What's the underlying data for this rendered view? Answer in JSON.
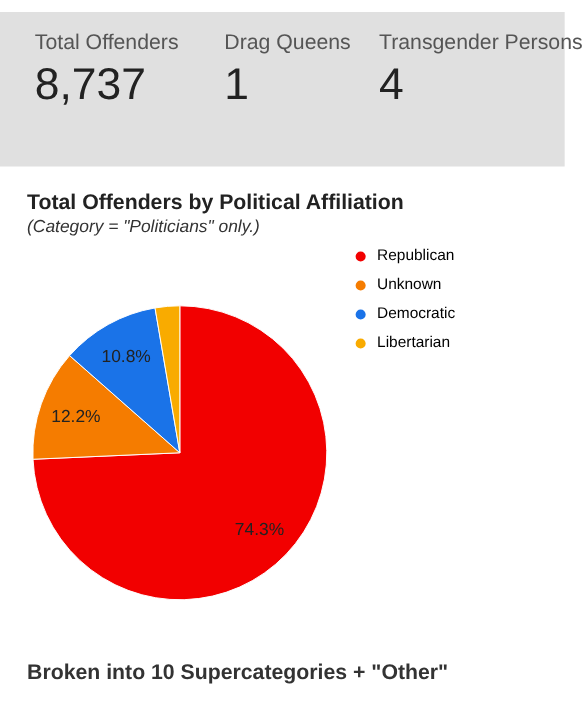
{
  "chart_data": [
    {
      "type": "other",
      "categories": [
        "Total Offenders",
        "Drag Queens",
        "Transgender Persons"
      ],
      "values": [
        8737,
        1,
        4
      ],
      "value_labels": [
        "8,737",
        "1",
        "4"
      ],
      "data_labels": true
    },
    {
      "type": "pie",
      "title": "Total Offenders by Political Affiliation",
      "subtitle": "(Category = \"Politicians\" only.)",
      "categories": [
        "Republican",
        "Unknown",
        "Democratic",
        "Libertarian"
      ],
      "values": [
        74.3,
        12.2,
        10.8,
        2.7
      ],
      "colors": [
        "#f20000",
        "#f57c00",
        "#1a73e8",
        "#f9ab00"
      ],
      "value_labels": [
        "74.3%",
        "12.2%",
        "10.8%",
        null
      ],
      "legend": "right",
      "annotations": [
        "Broken into 10 Supercategories + \"Other\""
      ]
    }
  ]
}
